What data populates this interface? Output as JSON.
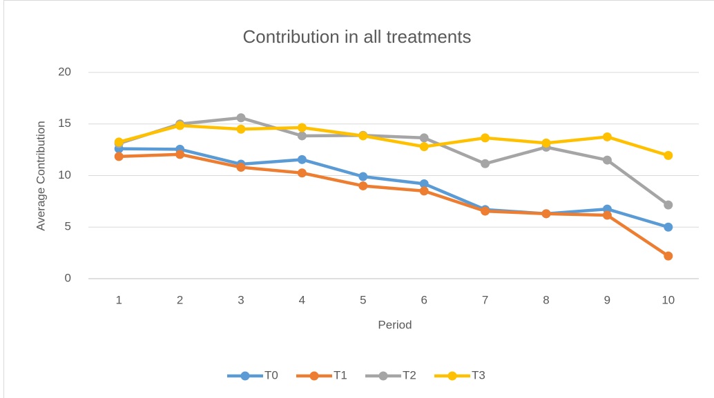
{
  "chart_data": {
    "type": "line",
    "title": "Contribution in all treatments",
    "x_label": "Period",
    "y_label": "Average Contribution",
    "categories": [
      "1",
      "2",
      "3",
      "4",
      "5",
      "6",
      "7",
      "8",
      "9",
      "10"
    ],
    "series": [
      {
        "name": "T0",
        "color": "#5b9bd5",
        "values": [
          12.6,
          12.55,
          11.1,
          11.55,
          9.9,
          9.2,
          6.7,
          6.3,
          6.75,
          5.0
        ]
      },
      {
        "name": "T1",
        "color": "#ed7d31",
        "values": [
          11.85,
          12.05,
          10.8,
          10.25,
          9.0,
          8.5,
          6.55,
          6.3,
          6.15,
          2.2
        ]
      },
      {
        "name": "T2",
        "color": "#a5a5a5",
        "values": [
          13.1,
          15.0,
          15.6,
          13.85,
          13.9,
          13.65,
          11.15,
          12.75,
          11.5,
          7.15
        ]
      },
      {
        "name": "T3",
        "color": "#ffc000",
        "values": [
          13.25,
          14.85,
          14.5,
          14.65,
          13.85,
          12.8,
          13.65,
          13.15,
          13.75,
          11.95
        ]
      }
    ],
    "ylim": [
      0,
      20
    ],
    "yticks": [
      0,
      5,
      10,
      15,
      20
    ],
    "grid": true,
    "legend": "bottom"
  }
}
